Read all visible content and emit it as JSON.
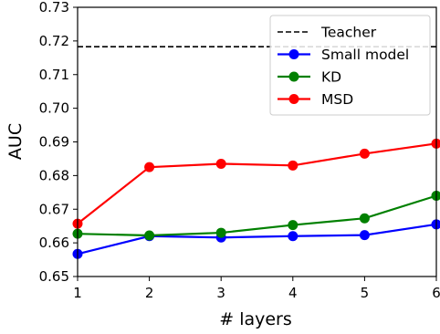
{
  "chart_data": {
    "type": "line",
    "title": "",
    "xlabel": "# layers",
    "ylabel": "AUC",
    "x": [
      1,
      2,
      3,
      4,
      5,
      6
    ],
    "xlim": [
      1,
      6
    ],
    "ylim": [
      0.65,
      0.73
    ],
    "x_ticks": [
      "1",
      "2",
      "3",
      "4",
      "5",
      "6"
    ],
    "y_ticks": [
      "0.65",
      "0.66",
      "0.67",
      "0.68",
      "0.69",
      "0.70",
      "0.71",
      "0.72",
      "0.73"
    ],
    "grid": false,
    "legend_position": "top-right",
    "reference_line": {
      "name": "Teacher",
      "value": 0.7183,
      "style": "dashed",
      "color": "#000000"
    },
    "series": [
      {
        "name": "Small model",
        "color": "#0000ff",
        "values": [
          0.6567,
          0.662,
          0.6616,
          0.662,
          0.6623,
          0.6655
        ]
      },
      {
        "name": "KD",
        "color": "#008000",
        "values": [
          0.6627,
          0.6622,
          0.663,
          0.6653,
          0.6673,
          0.674
        ]
      },
      {
        "name": "MSD",
        "color": "#ff0000",
        "values": [
          0.6657,
          0.6825,
          0.6835,
          0.683,
          0.6865,
          0.6895
        ]
      }
    ]
  }
}
